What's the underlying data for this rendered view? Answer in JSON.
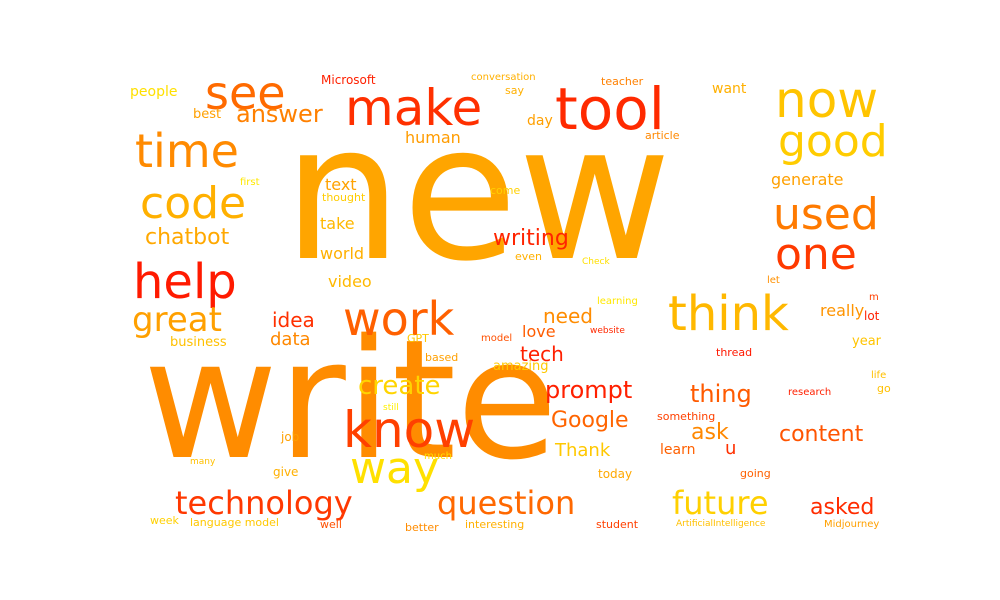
{
  "words": [
    {
      "text": "new",
      "color": "#FFA500"
    },
    {
      "text": "write",
      "color": "#FF8C00"
    },
    {
      "text": "tool",
      "color": "#FF2A00"
    },
    {
      "text": "make",
      "color": "#FF3000"
    },
    {
      "text": "now",
      "color": "#FFC400"
    },
    {
      "text": "see",
      "color": "#FF6A00"
    },
    {
      "text": "time",
      "color": "#FF8A00"
    },
    {
      "text": "good",
      "color": "#FFCC00"
    },
    {
      "text": "code",
      "color": "#FFB000"
    },
    {
      "text": "used",
      "color": "#FF7A00"
    },
    {
      "text": "one",
      "color": "#FF3A00"
    },
    {
      "text": "help",
      "color": "#FF1A00"
    },
    {
      "text": "think",
      "color": "#FFB800"
    },
    {
      "text": "work",
      "color": "#FF6000"
    },
    {
      "text": "know",
      "color": "#FF4000"
    },
    {
      "text": "way",
      "color": "#FFE000"
    },
    {
      "text": "great",
      "color": "#FFA000"
    },
    {
      "text": "technology",
      "color": "#FF3800"
    },
    {
      "text": "question",
      "color": "#FF6800"
    },
    {
      "text": "future",
      "color": "#FFD000"
    },
    {
      "text": "create",
      "color": "#FFD400"
    },
    {
      "text": "prompt",
      "color": "#FF2000"
    },
    {
      "text": "writing",
      "color": "#FF2400"
    },
    {
      "text": "answer",
      "color": "#FF8000"
    },
    {
      "text": "chatbot",
      "color": "#FFA800"
    },
    {
      "text": "Google",
      "color": "#FF6400"
    },
    {
      "text": "content",
      "color": "#FF5400"
    },
    {
      "text": "thing",
      "color": "#FF5A00"
    },
    {
      "text": "asked",
      "color": "#FF2C00"
    },
    {
      "text": "tech",
      "color": "#FF2000"
    },
    {
      "text": "need",
      "color": "#FF8C00"
    },
    {
      "text": "idea",
      "color": "#FF3000"
    },
    {
      "text": "data",
      "color": "#FF8800"
    },
    {
      "text": "ask",
      "color": "#FF8800"
    },
    {
      "text": "Thank",
      "color": "#FFC800"
    },
    {
      "text": "u",
      "color": "#FF3000"
    },
    {
      "text": "human",
      "color": "#FF9C00"
    },
    {
      "text": "generate",
      "color": "#FFA000"
    },
    {
      "text": "really",
      "color": "#FF9400"
    },
    {
      "text": "video",
      "color": "#FFB800"
    },
    {
      "text": "text",
      "color": "#FFA200"
    },
    {
      "text": "take",
      "color": "#FFB800"
    },
    {
      "text": "world",
      "color": "#FFB000"
    },
    {
      "text": "love",
      "color": "#FF5C00"
    },
    {
      "text": "day",
      "color": "#FFA000"
    },
    {
      "text": "people",
      "color": "#FFE000"
    },
    {
      "text": "best",
      "color": "#FFA000"
    },
    {
      "text": "want",
      "color": "#FFB000"
    },
    {
      "text": "business",
      "color": "#FFC000"
    },
    {
      "text": "amazing",
      "color": "#FFC800"
    },
    {
      "text": "learn",
      "color": "#FF6000"
    },
    {
      "text": "year",
      "color": "#FFC400"
    },
    {
      "text": "lot",
      "color": "#FF2000"
    },
    {
      "text": "Microsoft",
      "color": "#FF2000"
    },
    {
      "text": "conversation",
      "color": "#FFB000"
    },
    {
      "text": "teacher",
      "color": "#FF8000"
    },
    {
      "text": "say",
      "color": "#FFB000"
    },
    {
      "text": "article",
      "color": "#FF8800"
    },
    {
      "text": "first",
      "color": "#FFE800"
    },
    {
      "text": "thought",
      "color": "#FFCC00"
    },
    {
      "text": "come",
      "color": "#FFD000"
    },
    {
      "text": "even",
      "color": "#FFB000"
    },
    {
      "text": "Check",
      "color": "#FFE000"
    },
    {
      "text": "let",
      "color": "#FF9000"
    },
    {
      "text": "learning",
      "color": "#FFE800"
    },
    {
      "text": "m",
      "color": "#FF4000"
    },
    {
      "text": "website",
      "color": "#FF2800"
    },
    {
      "text": "GPT",
      "color": "#FFC800"
    },
    {
      "text": "model",
      "color": "#FF5000"
    },
    {
      "text": "based",
      "color": "#FFA000"
    },
    {
      "text": "thread",
      "color": "#FF1800"
    },
    {
      "text": "life",
      "color": "#FFC000"
    },
    {
      "text": "go",
      "color": "#FFC000"
    },
    {
      "text": "research",
      "color": "#FF2000"
    },
    {
      "text": "still",
      "color": "#FFF000"
    },
    {
      "text": "something",
      "color": "#FF4000"
    },
    {
      "text": "job",
      "color": "#FFA000"
    },
    {
      "text": "much",
      "color": "#FFE000"
    },
    {
      "text": "many",
      "color": "#FFC000"
    },
    {
      "text": "give",
      "color": "#FFB000"
    },
    {
      "text": "today",
      "color": "#FFA800"
    },
    {
      "text": "going",
      "color": "#FF6000"
    },
    {
      "text": "week",
      "color": "#FFD000"
    },
    {
      "text": "language model",
      "color": "#FFC800"
    },
    {
      "text": "well",
      "color": "#FF5000"
    },
    {
      "text": "better",
      "color": "#FF8C00"
    },
    {
      "text": "interesting",
      "color": "#FFB000"
    },
    {
      "text": "student",
      "color": "#FF4000"
    },
    {
      "text": "ArtificialIntelligence",
      "color": "#FFC000"
    },
    {
      "text": "Midjourney",
      "color": "#FFA000"
    }
  ]
}
